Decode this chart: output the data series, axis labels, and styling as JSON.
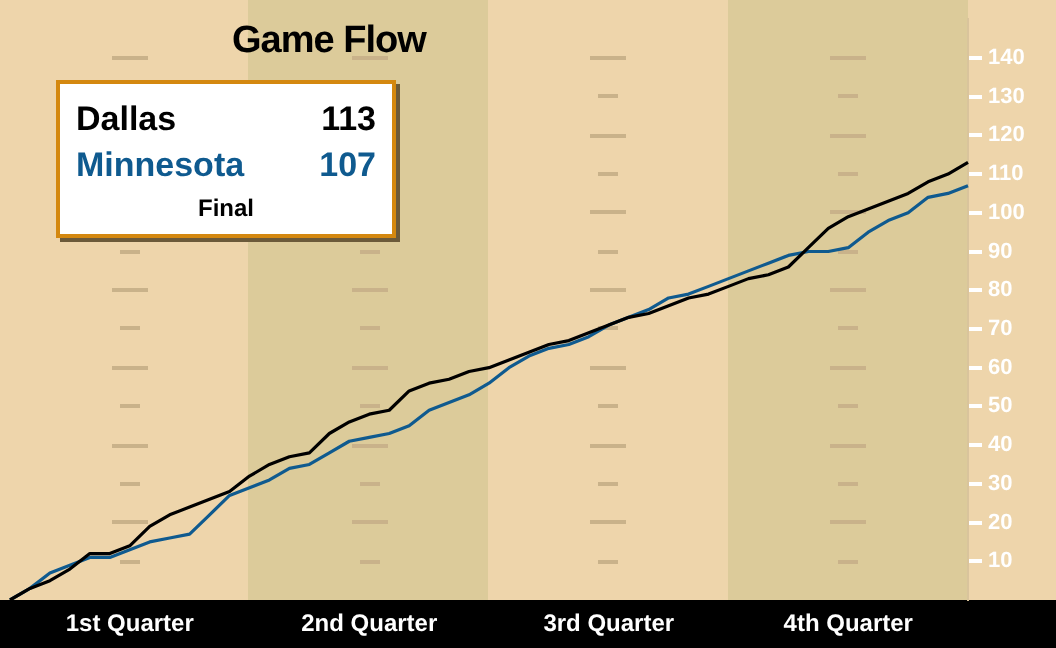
{
  "chart_data": {
    "type": "line",
    "title": "Game Flow",
    "legend": "top left",
    "grid": false,
    "marker": "none",
    "line_style": "solid",
    "annotations": [
      "113",
      "107",
      "Final"
    ],
    "categories": [
      null,
      null,
      null,
      null,
      null,
      null,
      "1st Quarter",
      null,
      null,
      null,
      null,
      null,
      null,
      null,
      null,
      null,
      null,
      null,
      "2nd Quarter",
      null,
      null,
      null,
      null,
      null,
      null,
      null,
      null,
      null,
      null,
      null,
      "3rd Quarter",
      null,
      null,
      null,
      null,
      null,
      null,
      null,
      null,
      null,
      null,
      null,
      "4th Quarter",
      null,
      null,
      null,
      null,
      null,
      null
    ],
    "ylim": [
      0,
      150
    ],
    "yticks": [
      10,
      20,
      30,
      40,
      50,
      60,
      70,
      80,
      90,
      100,
      110,
      120,
      130,
      140
    ],
    "series": [
      {
        "name": "Dallas",
        "color": "#000000",
        "values": [
          0,
          3,
          5,
          8,
          12,
          12,
          14,
          19,
          22,
          24,
          26,
          28,
          32,
          35,
          37,
          38,
          43,
          46,
          48,
          49,
          54,
          56,
          57,
          59,
          60,
          62,
          64,
          66,
          67,
          69,
          71,
          73,
          74,
          76,
          78,
          79,
          81,
          83,
          84,
          86,
          91,
          96,
          99,
          101,
          103,
          105,
          108,
          110,
          113
        ]
      },
      {
        "name": "Minnesota",
        "color": "#0f5a8f",
        "values": [
          0,
          3,
          7,
          9,
          11,
          11,
          13,
          15,
          16,
          17,
          22,
          27,
          29,
          31,
          34,
          35,
          38,
          41,
          42,
          43,
          45,
          49,
          51,
          53,
          56,
          60,
          63,
          65,
          66,
          68,
          71,
          73,
          75,
          78,
          79,
          81,
          83,
          85,
          87,
          89,
          90,
          90,
          91,
          95,
          98,
          100,
          104,
          105,
          107
        ]
      }
    ]
  }
}
